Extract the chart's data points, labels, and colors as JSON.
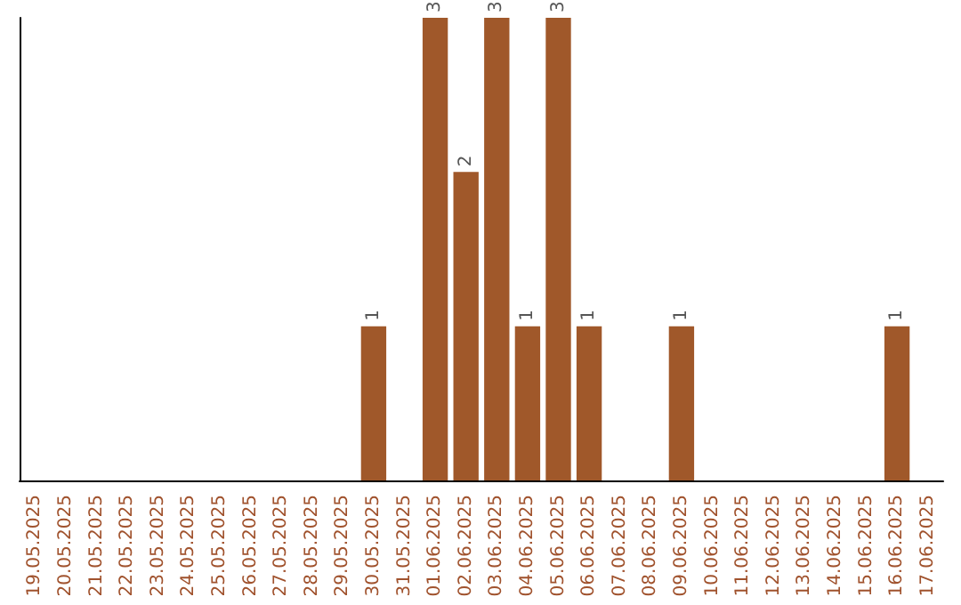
{
  "chart_data": {
    "type": "bar",
    "categories": [
      "19.05.2025",
      "20.05.2025",
      "21.05.2025",
      "22.05.2025",
      "23.05.2025",
      "24.05.2025",
      "25.05.2025",
      "26.05.2025",
      "27.05.2025",
      "28.05.2025",
      "29.05.2025",
      "30.05.2025",
      "31.05.2025",
      "01.06.2025",
      "02.06.2025",
      "03.06.2025",
      "04.06.2025",
      "05.06.2025",
      "06.06.2025",
      "07.06.2025",
      "08.06.2025",
      "09.06.2025",
      "10.06.2025",
      "11.06.2025",
      "12.06.2025",
      "13.06.2025",
      "14.06.2025",
      "15.06.2025",
      "16.06.2025",
      "17.06.2025"
    ],
    "values": [
      0,
      0,
      0,
      0,
      0,
      0,
      0,
      0,
      0,
      0,
      0,
      1,
      0,
      3,
      2,
      3,
      1,
      3,
      1,
      0,
      0,
      1,
      0,
      0,
      0,
      0,
      0,
      0,
      1,
      0
    ],
    "value_labels": [
      null,
      null,
      null,
      null,
      null,
      null,
      null,
      null,
      null,
      null,
      null,
      "1",
      null,
      "3",
      "2",
      "3",
      "1",
      "3",
      "1",
      null,
      null,
      "1",
      null,
      null,
      null,
      null,
      null,
      null,
      "1",
      null
    ],
    "color": "#a0582a",
    "grid": false,
    "tick_labels": "x"
  }
}
